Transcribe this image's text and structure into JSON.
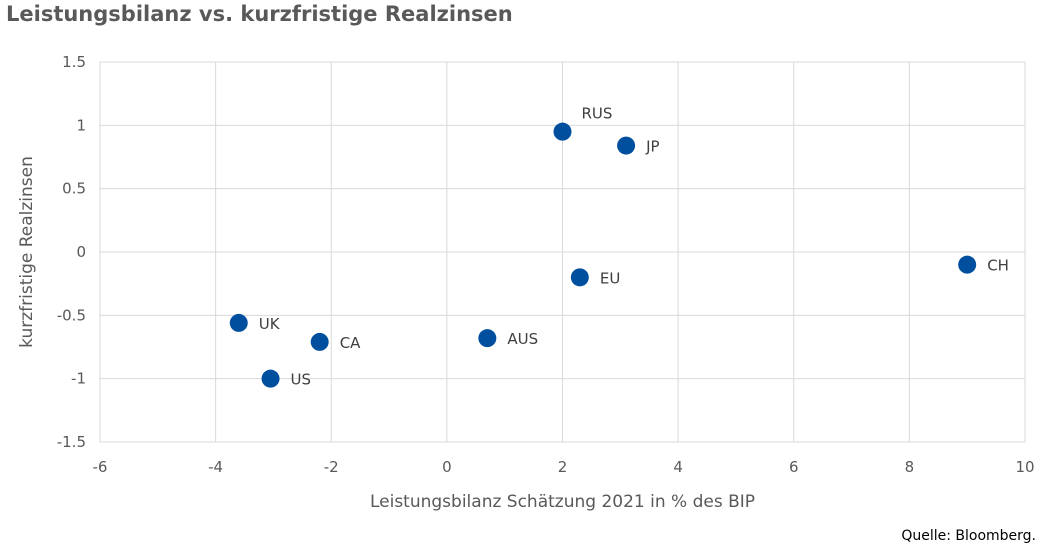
{
  "title": "Leistungsbilanz vs. kurzfristige Realzinsen",
  "source": "Quelle: Bloomberg.",
  "chart_data": {
    "type": "scatter",
    "xlabel": "Leistungsbilanz Schätzung 2021 in % des BIP",
    "ylabel": "kurzfristige Realzinsen",
    "xlim": [
      -6,
      10
    ],
    "ylim": [
      -1.5,
      1.5
    ],
    "x_ticks": [
      "-6",
      "-4",
      "-2",
      "0",
      "2",
      "4",
      "6",
      "8",
      "10"
    ],
    "y_ticks": [
      "1.5",
      "1",
      "0.5",
      "0",
      "-0.5",
      "-1",
      "-1.5"
    ],
    "grid": true,
    "point_color": "#004f9f",
    "points": [
      {
        "label": "RUS",
        "x": 2.0,
        "y": 0.95
      },
      {
        "label": "JP",
        "x": 3.1,
        "y": 0.84
      },
      {
        "label": "EU",
        "x": 2.3,
        "y": -0.2
      },
      {
        "label": "CH",
        "x": 9.0,
        "y": -0.1
      },
      {
        "label": "UK",
        "x": -3.6,
        "y": -0.56
      },
      {
        "label": "CA",
        "x": -2.2,
        "y": -0.71
      },
      {
        "label": "AUS",
        "x": 0.7,
        "y": -0.68
      },
      {
        "label": "US",
        "x": -3.05,
        "y": -1.0
      }
    ]
  }
}
